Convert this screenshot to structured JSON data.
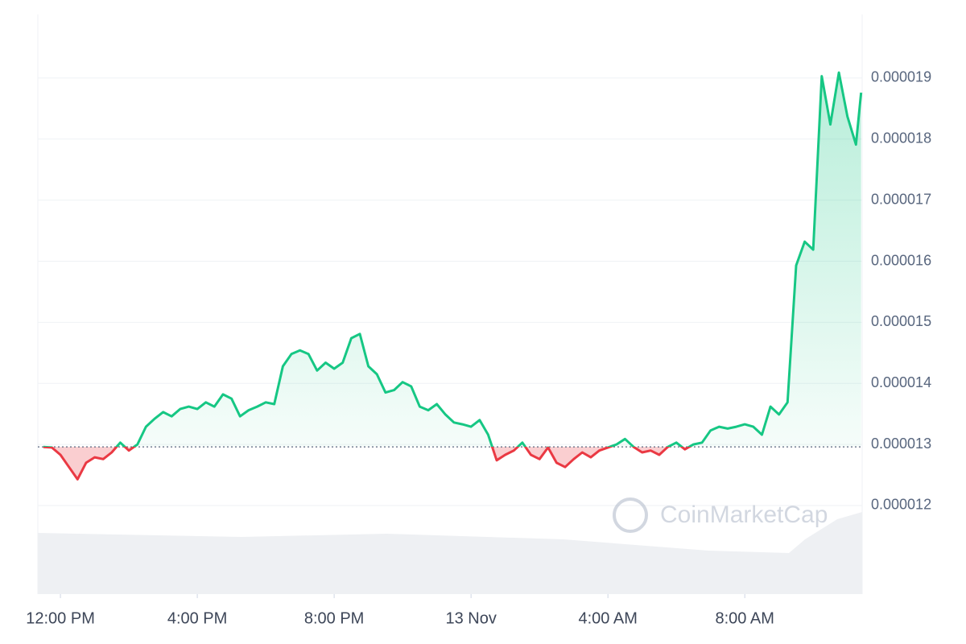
{
  "chart_data": {
    "type": "line",
    "watermark": "CoinMarketCap",
    "x": [
      -0.5,
      -0.25,
      0,
      0.25,
      0.5,
      0.75,
      1,
      1.25,
      1.5,
      1.75,
      2,
      2.25,
      2.5,
      2.75,
      3,
      3.25,
      3.5,
      3.75,
      4,
      4.25,
      4.5,
      4.75,
      5,
      5.25,
      5.5,
      5.75,
      6,
      6.25,
      6.5,
      6.75,
      7,
      7.25,
      7.5,
      7.75,
      8,
      8.25,
      8.5,
      8.75,
      9,
      9.25,
      9.5,
      9.75,
      10,
      10.25,
      10.5,
      10.75,
      11,
      11.25,
      11.5,
      11.75,
      12,
      12.25,
      12.5,
      12.75,
      13,
      13.25,
      13.5,
      13.75,
      14,
      14.25,
      14.5,
      14.75,
      15,
      15.25,
      15.5,
      15.75,
      16,
      16.25,
      16.5,
      16.75,
      17,
      17.25,
      17.5,
      17.75,
      18,
      18.25,
      18.5,
      18.75,
      19,
      19.25,
      19.5,
      19.75,
      20,
      20.25,
      20.5,
      20.75,
      21,
      21.25,
      21.5,
      21.75,
      22,
      22.25,
      22.5,
      22.75,
      23,
      23.25,
      23.4
    ],
    "values": [
      1.296e-05,
      1.295e-05,
      1.283e-05,
      1.263e-05,
      1.243e-05,
      1.27e-05,
      1.279e-05,
      1.276e-05,
      1.287e-05,
      1.303e-05,
      1.29e-05,
      1.3e-05,
      1.329e-05,
      1.342e-05,
      1.353e-05,
      1.346e-05,
      1.358e-05,
      1.362e-05,
      1.358e-05,
      1.369e-05,
      1.362e-05,
      1.382e-05,
      1.375e-05,
      1.346e-05,
      1.356e-05,
      1.362e-05,
      1.369e-05,
      1.366e-05,
      1.428e-05,
      1.448e-05,
      1.454e-05,
      1.448e-05,
      1.421e-05,
      1.434e-05,
      1.424e-05,
      1.434e-05,
      1.474e-05,
      1.481e-05,
      1.428e-05,
      1.415e-05,
      1.385e-05,
      1.389e-05,
      1.402e-05,
      1.395e-05,
      1.362e-05,
      1.356e-05,
      1.366e-05,
      1.349e-05,
      1.336e-05,
      1.333e-05,
      1.329e-05,
      1.34e-05,
      1.316e-05,
      1.274e-05,
      1.283e-05,
      1.29e-05,
      1.303e-05,
      1.283e-05,
      1.276e-05,
      1.295e-05,
      1.27e-05,
      1.263e-05,
      1.276e-05,
      1.287e-05,
      1.279e-05,
      1.29e-05,
      1.295e-05,
      1.3e-05,
      1.309e-05,
      1.296e-05,
      1.287e-05,
      1.29e-05,
      1.283e-05,
      1.296e-05,
      1.303e-05,
      1.292e-05,
      1.3e-05,
      1.303e-05,
      1.323e-05,
      1.329e-05,
      1.326e-05,
      1.329e-05,
      1.333e-05,
      1.329e-05,
      1.316e-05,
      1.362e-05,
      1.349e-05,
      1.369e-05,
      1.593e-05,
      1.632e-05,
      1.619e-05,
      1.903e-05,
      1.824e-05,
      1.909e-05,
      1.837e-05,
      1.791e-05,
      1.876e-05
    ],
    "baseline": 1.296e-05,
    "up_color": "#16c784",
    "down_color": "#ea3943",
    "xlim": [
      -0.66,
      23.43
    ],
    "xticks": [
      {
        "value": 0,
        "label": "12:00 PM"
      },
      {
        "value": 4,
        "label": "4:00 PM"
      },
      {
        "value": 8,
        "label": "8:00 PM"
      },
      {
        "value": 12,
        "label": "13 Nov"
      },
      {
        "value": 16,
        "label": "4:00 AM"
      },
      {
        "value": 20,
        "label": "8:00 AM"
      }
    ],
    "ylim": [
      1.055e-05,
      2.004e-05
    ],
    "yticks": [
      1.2e-05,
      1.3e-05,
      1.4e-05,
      1.5e-05,
      1.6e-05,
      1.7e-05,
      1.8e-05,
      1.9e-05
    ],
    "grid": true
  }
}
